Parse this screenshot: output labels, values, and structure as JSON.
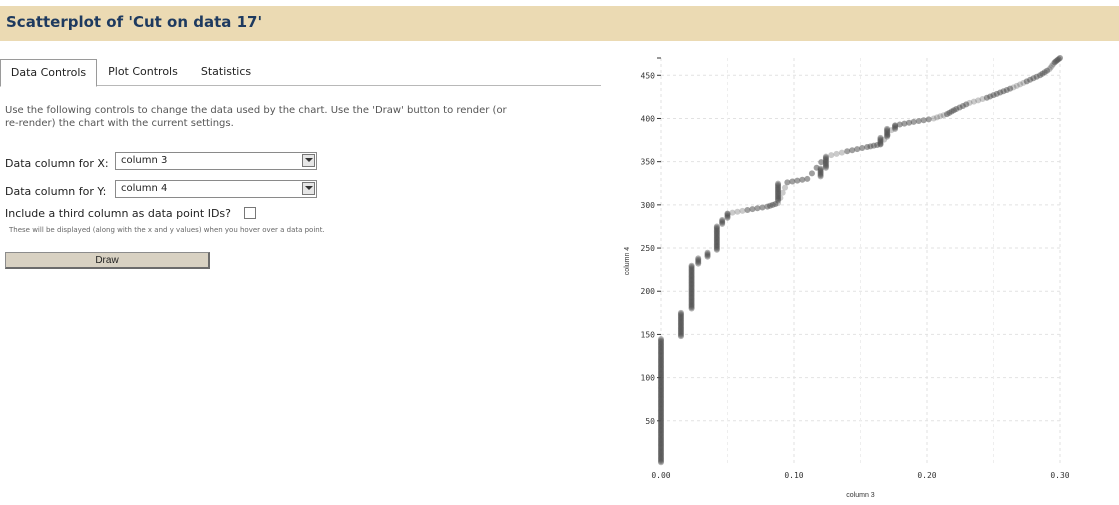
{
  "header": {
    "title": "Scatterplot of 'Cut on data 17'"
  },
  "tabs": [
    {
      "label": "Data Controls",
      "active": true
    },
    {
      "label": "Plot Controls",
      "active": false
    },
    {
      "label": "Statistics",
      "active": false
    }
  ],
  "controls": {
    "intro_line1": "Use the following controls to change the data used by the chart. Use the 'Draw' button to render (or",
    "intro_line2": "re-render) the chart with the current settings.",
    "x_label": "Data column for X:",
    "x_value": "column 3",
    "y_label": "Data column for Y:",
    "y_value": "column 4",
    "ids_label": "Include a third column as data point IDs?",
    "ids_checked": false,
    "ids_hint": "These will be displayed (along with the x and y values) when you hover over a data point.",
    "draw_label": "Draw"
  },
  "chart_data": {
    "type": "scatter",
    "xlabel": "column 3",
    "ylabel": "column 4",
    "xlim": [
      0,
      0.3
    ],
    "ylim": [
      0,
      470
    ],
    "x_ticks": [
      "0.00",
      "0.10",
      "0.20",
      "0.30"
    ],
    "y_ticks": [
      "50",
      "100",
      "150",
      "200",
      "250",
      "300",
      "350",
      "400",
      "450"
    ],
    "grid": true,
    "point_color": "#505050",
    "segments": [
      {
        "x": 0.0,
        "y_start": 2,
        "y_end": 145
      },
      {
        "x": 0.015,
        "y_start": 148,
        "y_end": 175
      },
      {
        "x": 0.023,
        "y_start": 180,
        "y_end": 230
      },
      {
        "x": 0.028,
        "y_start": 232,
        "y_end": 238
      },
      {
        "x": 0.035,
        "y_start": 240,
        "y_end": 245
      },
      {
        "x": 0.042,
        "y_start": 248,
        "y_end": 275
      },
      {
        "x": 0.046,
        "y_start": 278,
        "y_end": 283
      },
      {
        "x": 0.05,
        "y_start": 285,
        "y_end": 290
      },
      {
        "x": 0.088,
        "y_start": 305,
        "y_end": 325
      },
      {
        "x": 0.12,
        "y_start": 333,
        "y_end": 342
      },
      {
        "x": 0.124,
        "y_start": 343,
        "y_end": 355
      },
      {
        "x": 0.165,
        "y_start": 370,
        "y_end": 378
      },
      {
        "x": 0.17,
        "y_start": 379,
        "y_end": 388
      },
      {
        "x": 0.176,
        "y_start": 388,
        "y_end": 392
      }
    ],
    "trend": [
      [
        0.05,
        290
      ],
      [
        0.065,
        294
      ],
      [
        0.08,
        298
      ],
      [
        0.088,
        302
      ],
      [
        0.095,
        326
      ],
      [
        0.11,
        330
      ],
      [
        0.124,
        356
      ],
      [
        0.14,
        362
      ],
      [
        0.155,
        367
      ],
      [
        0.165,
        370
      ],
      [
        0.176,
        392
      ],
      [
        0.19,
        396
      ],
      [
        0.205,
        400
      ],
      [
        0.215,
        405
      ],
      [
        0.222,
        411
      ],
      [
        0.232,
        418
      ],
      [
        0.245,
        424
      ],
      [
        0.255,
        430
      ],
      [
        0.265,
        436
      ],
      [
        0.275,
        443
      ],
      [
        0.285,
        450
      ],
      [
        0.292,
        457
      ],
      [
        0.296,
        465
      ],
      [
        0.3,
        470
      ]
    ]
  }
}
